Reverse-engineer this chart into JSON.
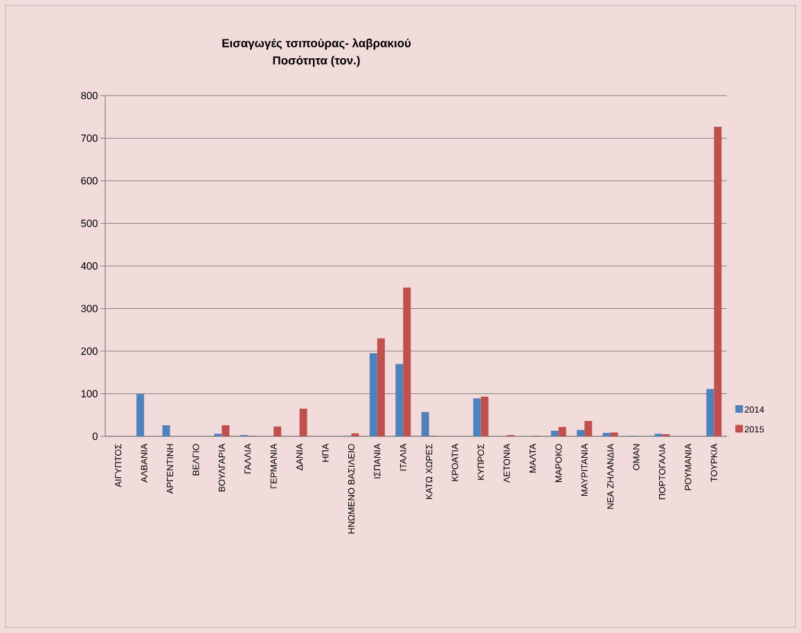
{
  "chart_data": {
    "type": "bar",
    "title": "Εισαγωγές  τσιπούρας- λαβρακιού",
    "subtitle": "Ποσότητα (τον.)",
    "categories": [
      "ΑΙΓΥΠΤΟΣ",
      "ΑΛΒΑΝΙΑ",
      "ΑΡΓΕΝΤΙΝΗ",
      "ΒΕΛΓΙΟ",
      "ΒΟΥΛΓΑΡΙΑ",
      "ΓΑΛΛΙΑ",
      "ΓΕΡΜΑΝΙΑ",
      "ΔΑΝΙΑ",
      "ΗΠΑ",
      "ΗΝΩΜΕΝΟ ΒΑΣΙΛΕΙΟ",
      "ΙΣΠΑΝΙΑ",
      "ΙΤΑΛΙΑ",
      "ΚΑΤΩ ΧΩΡΕΣ",
      "ΚΡΟΑΤΙΑ",
      "ΚΥΠΡΟΣ",
      "ΛΕΤΟΝΙΑ",
      "ΜΑΛΤΑ",
      "ΜΑΡΟΚΟ",
      "ΜΑΥΡΙΤΑΝΙΑ",
      "ΝΕΑ ΖΗΛΑΝΔΙΑ",
      "ΟΜΑΝ",
      "ΠΟΡΤΟΓΑΛΙΑ",
      "ΡΟΥΜΑΝΙΑ",
      "ΤΟΥΡΚΙΑ"
    ],
    "series": [
      {
        "name": "2014",
        "color": "#4f81bd",
        "values": [
          0,
          99,
          26,
          0,
          6,
          3,
          0,
          0,
          0,
          1,
          195,
          170,
          57,
          0,
          89,
          0,
          0,
          13,
          15,
          8,
          1,
          6,
          0,
          111
        ]
      },
      {
        "name": "2015",
        "color": "#c0504d",
        "values": [
          0,
          0,
          0,
          0,
          26,
          1,
          23,
          65,
          0,
          7,
          230,
          349,
          1,
          0,
          93,
          3,
          1,
          22,
          36,
          9,
          0,
          5,
          0,
          727
        ]
      }
    ],
    "ylim": [
      0,
      800
    ],
    "yticks": [
      0,
      100,
      200,
      300,
      400,
      500,
      600,
      700,
      800
    ],
    "grid": "y",
    "legend": "right"
  }
}
